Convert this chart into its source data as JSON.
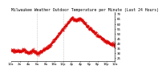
{
  "title": "Milwaukee Weather Outdoor Temperature per Minute (Last 24 Hours)",
  "line_color": "#dd0000",
  "bg_color": "#ffffff",
  "grid_color": "#aaaaaa",
  "ylim": [
    22,
    72
  ],
  "y_tick_vals": [
    25,
    30,
    35,
    40,
    45,
    50,
    55,
    60,
    65,
    70
  ],
  "num_points": 1440,
  "vline1_hour": 6,
  "vline2_hour": 12,
  "title_fontsize": 3.5,
  "tick_fontsize": 3.0,
  "curve_segments": [
    {
      "t0": 0,
      "t1": 2,
      "v0": 33,
      "v1": 32
    },
    {
      "t0": 2,
      "t1": 3,
      "v0": 32,
      "v1": 34
    },
    {
      "t0": 3,
      "t1": 4,
      "v0": 34,
      "v1": 30
    },
    {
      "t0": 4,
      "t1": 5,
      "v0": 30,
      "v1": 33
    },
    {
      "t0": 5,
      "t1": 6,
      "v0": 33,
      "v1": 30
    },
    {
      "t0": 6,
      "t1": 7,
      "v0": 30,
      "v1": 32
    },
    {
      "t0": 7,
      "t1": 9,
      "v0": 32,
      "v1": 38
    },
    {
      "t0": 9,
      "t1": 12,
      "v0": 38,
      "v1": 55
    },
    {
      "t0": 12,
      "t1": 14,
      "v0": 55,
      "v1": 66
    },
    {
      "t0": 14,
      "t1": 15,
      "v0": 66,
      "v1": 64
    },
    {
      "t0": 15,
      "t1": 16,
      "v0": 64,
      "v1": 65
    },
    {
      "t0": 16,
      "t1": 18,
      "v0": 65,
      "v1": 56
    },
    {
      "t0": 18,
      "t1": 20,
      "v0": 56,
      "v1": 48
    },
    {
      "t0": 20,
      "t1": 22,
      "v0": 48,
      "v1": 42
    },
    {
      "t0": 22,
      "t1": 24,
      "v0": 42,
      "v1": 38
    }
  ],
  "noise_std": 0.9,
  "noise_seed": 7
}
